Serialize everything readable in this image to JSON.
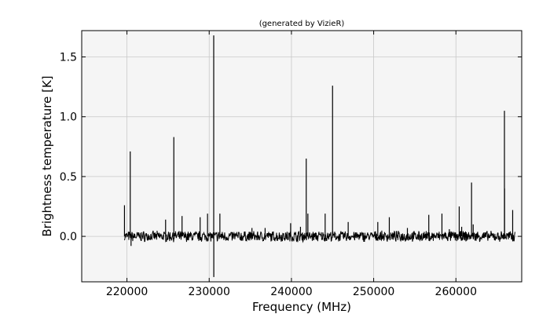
{
  "chart_data": {
    "type": "line",
    "title": "(generated by VizieR)",
    "xlabel": "Frequency (MHz)",
    "ylabel": "Brightness temperature [K]",
    "xlim": [
      214500,
      268000
    ],
    "ylim": [
      -0.38,
      1.72
    ],
    "xticks": [
      220000,
      230000,
      240000,
      250000,
      260000
    ],
    "xtick_labels": [
      "220000",
      "230000",
      "240000",
      "250000",
      "260000"
    ],
    "yticks": [
      0.0,
      0.5,
      1.0,
      1.5
    ],
    "ytick_labels": [
      "0.0",
      "0.5",
      "1.0",
      "1.5"
    ],
    "grid": true,
    "background": "#f5f5f5",
    "line_color": "#000000",
    "baseline": {
      "x_start": 219700,
      "x_end": 267200,
      "noise_rms": 0.018
    },
    "peaks": [
      {
        "x": 219700,
        "y": 0.26
      },
      {
        "x": 220400,
        "y": 0.71
      },
      {
        "x": 220500,
        "y": -0.08
      },
      {
        "x": 224700,
        "y": 0.14
      },
      {
        "x": 225700,
        "y": 0.83
      },
      {
        "x": 226700,
        "y": 0.17
      },
      {
        "x": 228900,
        "y": 0.16
      },
      {
        "x": 229800,
        "y": 0.19
      },
      {
        "x": 230550,
        "y": 1.68
      },
      {
        "x": 230560,
        "y": -0.34
      },
      {
        "x": 231300,
        "y": 0.19
      },
      {
        "x": 235200,
        "y": 0.07
      },
      {
        "x": 236800,
        "y": 0.07
      },
      {
        "x": 239900,
        "y": 0.11
      },
      {
        "x": 241100,
        "y": 0.08
      },
      {
        "x": 241800,
        "y": 0.65
      },
      {
        "x": 242000,
        "y": 0.19
      },
      {
        "x": 244100,
        "y": 0.19
      },
      {
        "x": 245000,
        "y": 1.26
      },
      {
        "x": 246900,
        "y": 0.12
      },
      {
        "x": 250500,
        "y": 0.12
      },
      {
        "x": 251900,
        "y": 0.16
      },
      {
        "x": 254100,
        "y": 0.07
      },
      {
        "x": 256700,
        "y": 0.18
      },
      {
        "x": 258300,
        "y": 0.19
      },
      {
        "x": 259200,
        "y": 0.06
      },
      {
        "x": 260400,
        "y": 0.25
      },
      {
        "x": 260700,
        "y": 0.08
      },
      {
        "x": 261900,
        "y": 0.45
      },
      {
        "x": 262100,
        "y": 0.1
      },
      {
        "x": 265900,
        "y": 1.05
      },
      {
        "x": 265910,
        "y": 0.4
      },
      {
        "x": 266900,
        "y": 0.22
      }
    ]
  }
}
